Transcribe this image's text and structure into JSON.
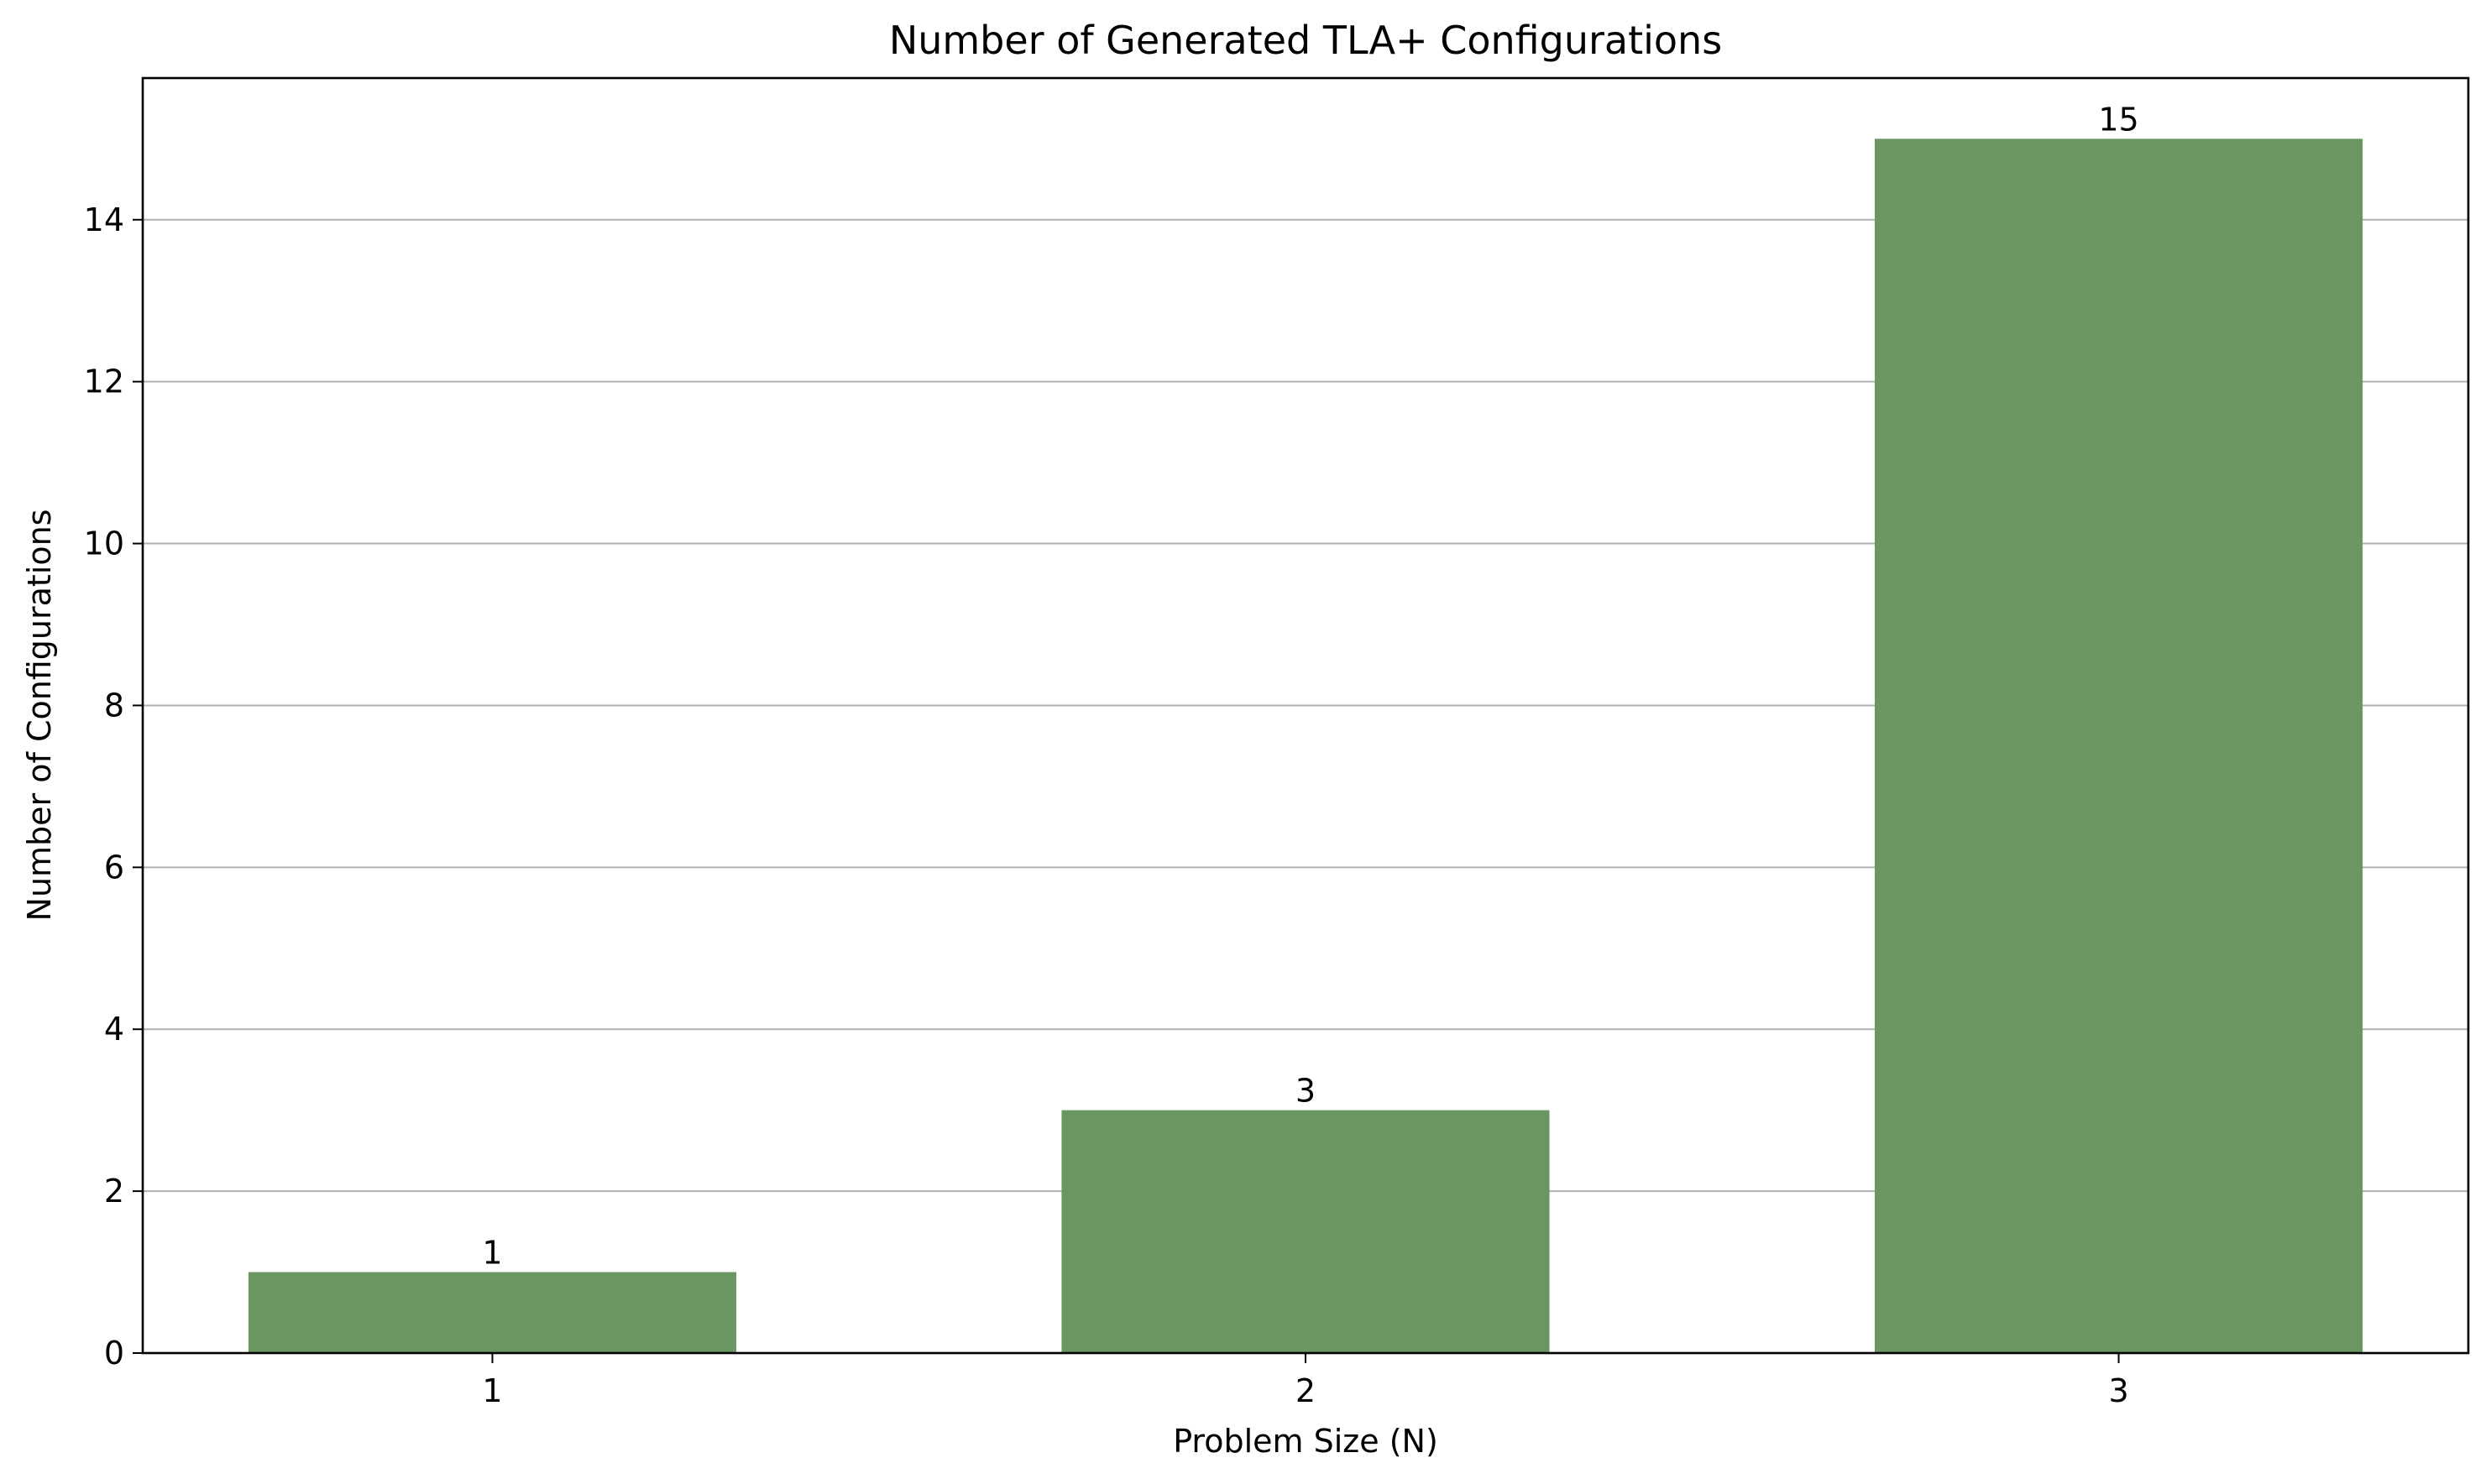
{
  "chart_data": {
    "type": "bar",
    "title": "Number of Generated TLA+ Configurations",
    "xlabel": "Problem Size (N)",
    "ylabel": "Number of Configurations",
    "categories": [
      "1",
      "2",
      "3"
    ],
    "values": [
      1,
      3,
      15
    ],
    "data_labels": [
      "1",
      "3",
      "15"
    ],
    "ylim": [
      0,
      15.75
    ],
    "yticks": [
      0,
      2,
      4,
      6,
      8,
      10,
      12,
      14
    ],
    "grid": "y",
    "legend": "none",
    "bar_color": "#6a9662",
    "grid_color": "#b0b0b0"
  }
}
